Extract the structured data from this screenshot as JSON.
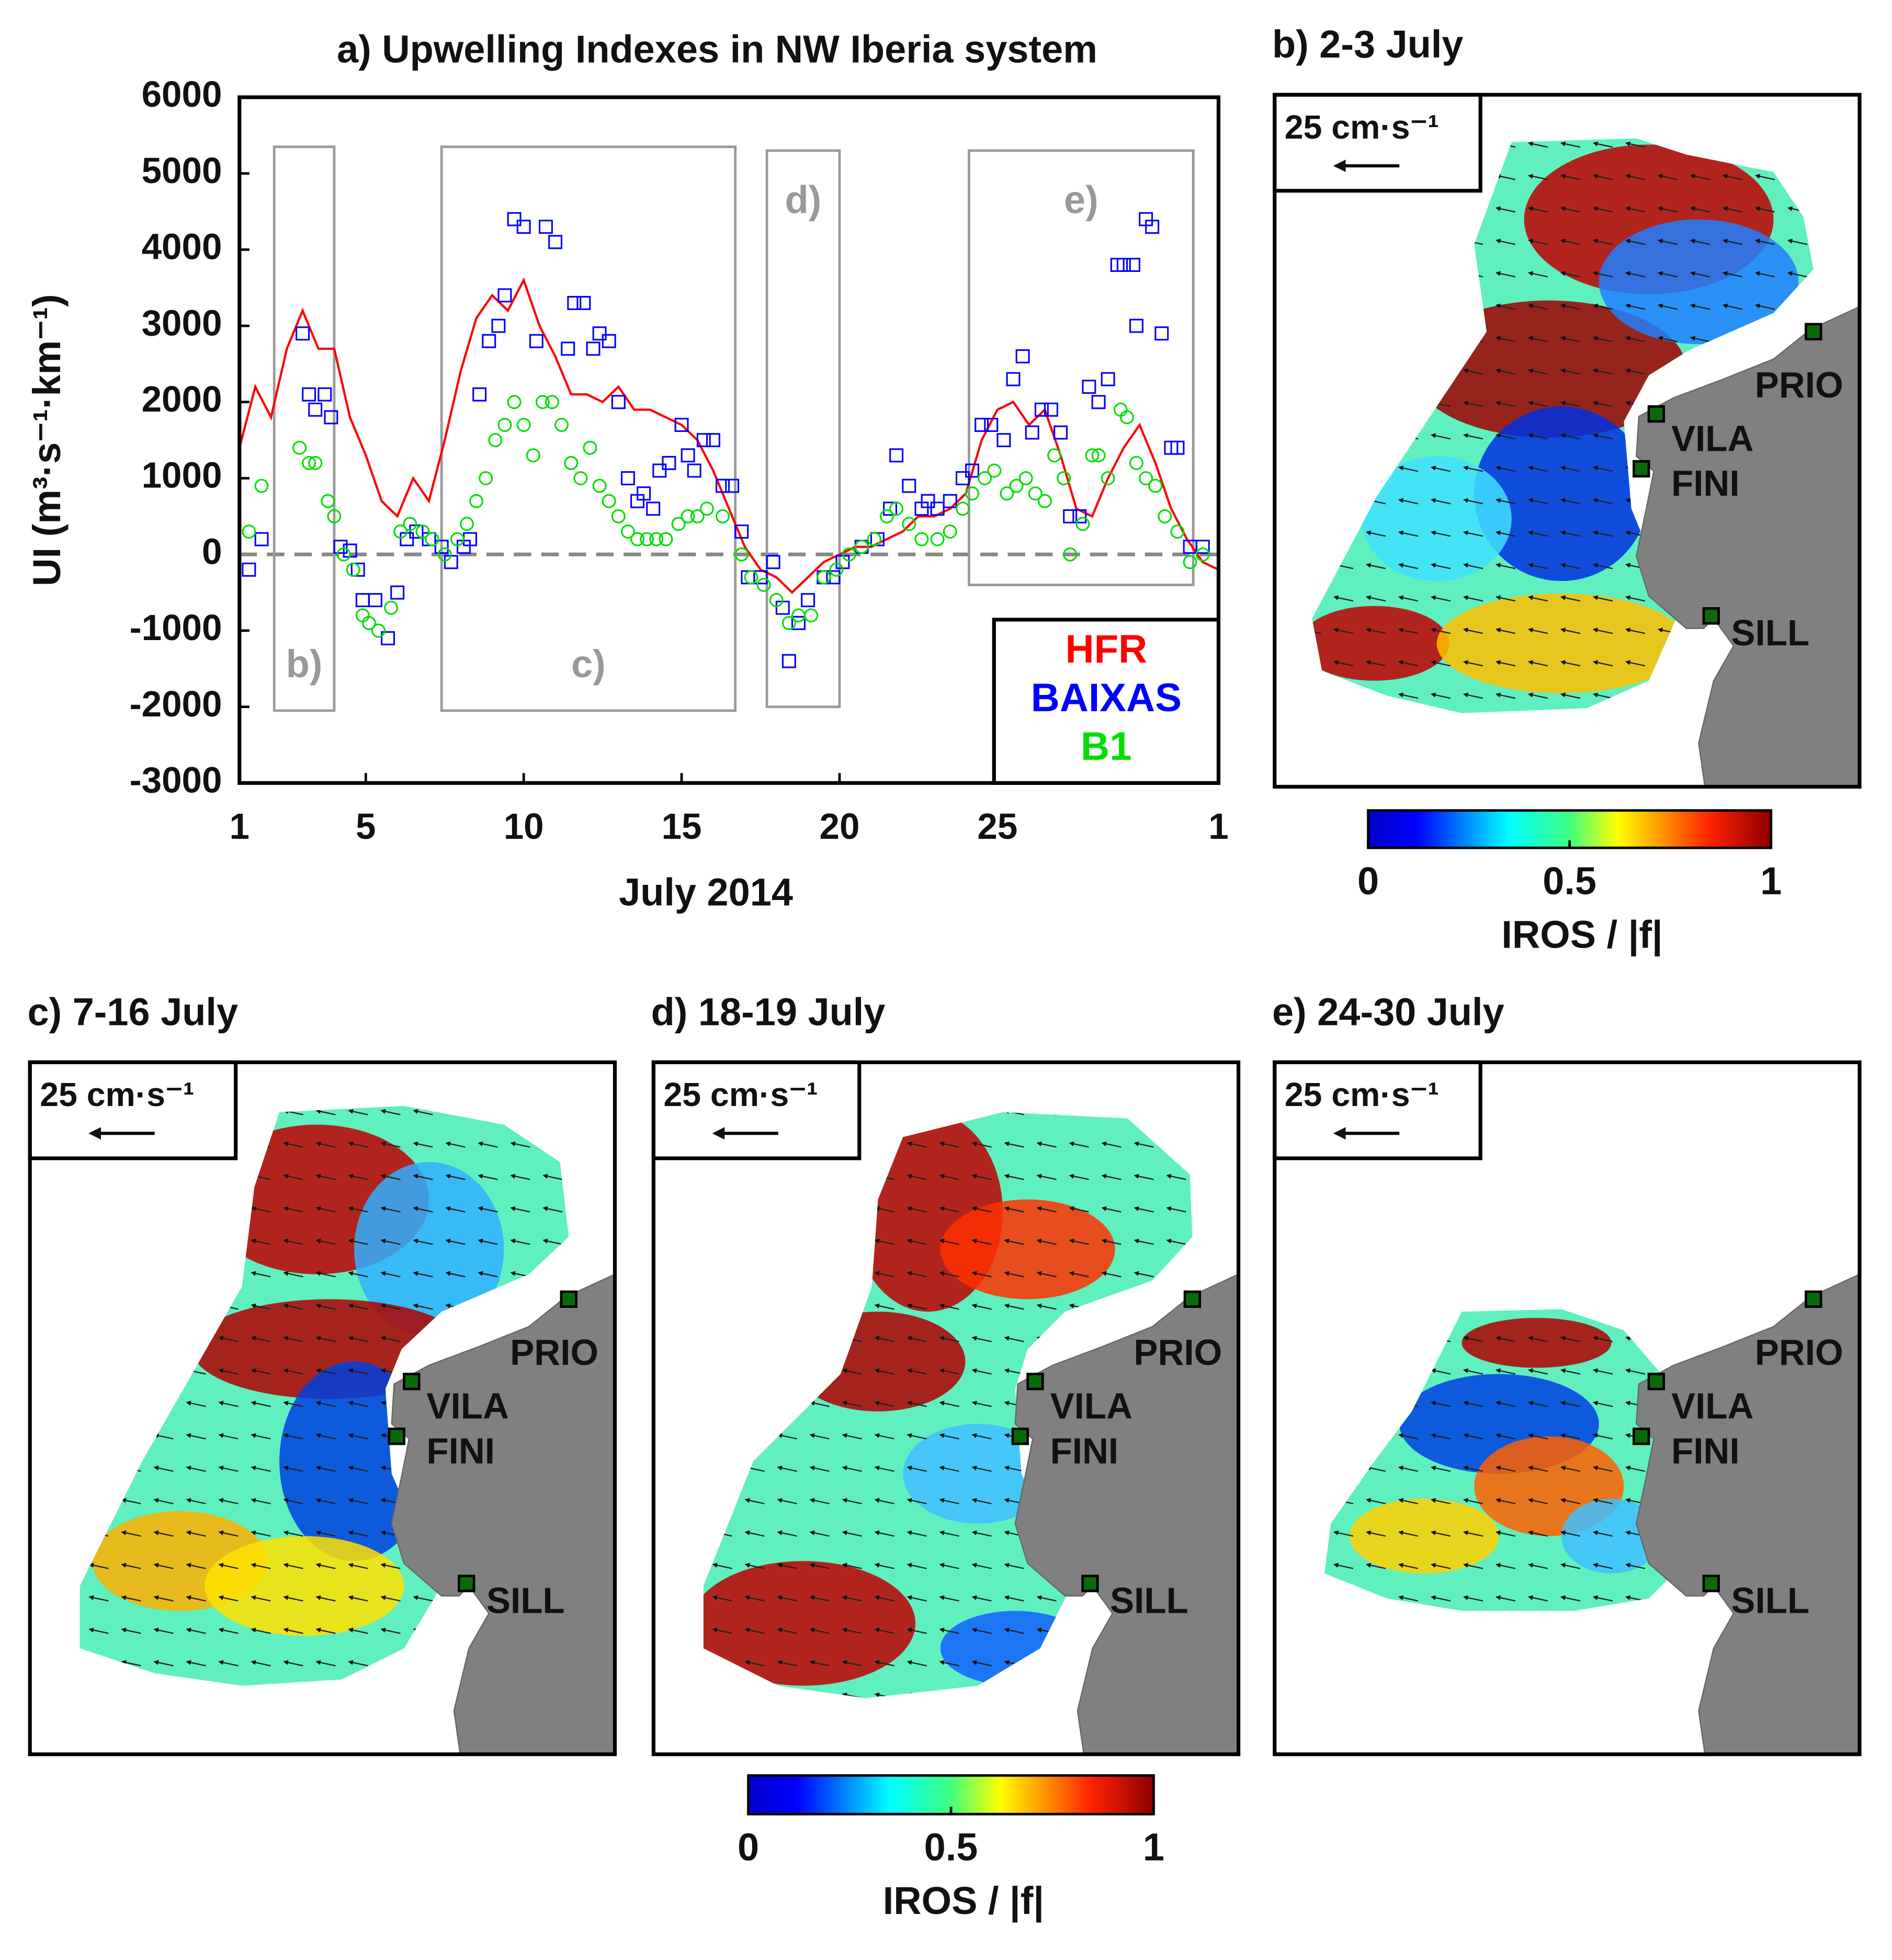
{
  "chart_data": {
    "type": "line",
    "title": "a) Upwelling Indexes in NW Iberia system",
    "x_label": "July 2014",
    "y_label": "UI (m³·s⁻¹·km⁻¹)",
    "xlim": [
      1,
      32
    ],
    "xticks": [
      1,
      5,
      10,
      15,
      20,
      25,
      {
        "value": 32,
        "label": "1"
      }
    ],
    "ylim": [
      -3000,
      6000
    ],
    "yticks": [
      -3000,
      -2000,
      -1000,
      0,
      1000,
      2000,
      3000,
      4000,
      5000,
      6000
    ],
    "reference_line": 0,
    "legend": "lower right",
    "series": [
      {
        "name": "HFR",
        "color": "#ff0000",
        "marker": "line",
        "x": [
          1,
          1.5,
          2,
          2.5,
          3,
          3.5,
          4,
          4.5,
          5,
          5.5,
          6,
          6.5,
          7,
          7.5,
          8,
          8.5,
          9,
          9.5,
          10,
          10.5,
          11,
          11.5,
          12,
          12.5,
          13,
          13.5,
          14,
          14.5,
          15,
          15.5,
          16,
          16.5,
          17,
          17.5,
          18,
          18.5,
          19,
          19.5,
          20,
          20.5,
          21,
          21.5,
          22,
          22.5,
          23,
          23.5,
          24,
          24.5,
          25,
          25.5,
          26,
          26.5,
          27,
          27.5,
          28,
          28.5,
          29,
          29.5,
          30,
          30.5,
          31,
          31.5,
          32
        ],
        "values": [
          1400,
          2200,
          1800,
          2700,
          3200,
          2700,
          2700,
          1800,
          1300,
          700,
          500,
          1000,
          700,
          1500,
          2400,
          3100,
          3400,
          3200,
          3600,
          3000,
          2600,
          2100,
          2100,
          2000,
          2200,
          1900,
          1900,
          1800,
          1700,
          1500,
          1100,
          600,
          100,
          -200,
          -300,
          -500,
          -300,
          -100,
          0,
          100,
          100,
          200,
          300,
          500,
          500,
          600,
          800,
          1500,
          1900,
          2000,
          1700,
          1900,
          1300,
          600,
          500,
          1000,
          1400,
          1700,
          1200,
          600,
          200,
          -100,
          -200
        ]
      },
      {
        "name": "BAIXAS",
        "color": "#0000ff",
        "marker": "square",
        "x": [
          1.3,
          1.7,
          3.0,
          3.2,
          3.4,
          3.7,
          3.9,
          4.2,
          4.5,
          4.75,
          4.9,
          5.3,
          5.7,
          6.0,
          6.3,
          6.6,
          7.0,
          7.4,
          7.7,
          8.1,
          8.3,
          8.6,
          8.9,
          9.2,
          9.4,
          9.7,
          10.0,
          10.4,
          10.7,
          11.0,
          11.4,
          11.6,
          11.9,
          12.2,
          12.4,
          12.7,
          13.0,
          13.3,
          13.6,
          13.8,
          14.1,
          14.3,
          14.6,
          15.0,
          15.2,
          15.4,
          15.7,
          16.0,
          16.3,
          16.6,
          16.9,
          17.1,
          17.5,
          17.9,
          18.2,
          18.4,
          18.7,
          19.0,
          19.5,
          19.8,
          20.1,
          20.7,
          21.2,
          21.6,
          21.8,
          22.2,
          22.6,
          22.8,
          23.1,
          23.5,
          23.9,
          24.2,
          24.5,
          24.8,
          25.2,
          25.5,
          25.8,
          26.1,
          26.4,
          26.7,
          27.0,
          27.3,
          27.6,
          27.9,
          28.2,
          28.5,
          28.8,
          29.0,
          29.3,
          29.4,
          29.7,
          29.9,
          30.2,
          30.5,
          30.7,
          31.1,
          31.5
        ],
        "values": [
          -200,
          200,
          2900,
          2100,
          1900,
          2100,
          1800,
          100,
          50,
          -200,
          -600,
          -600,
          -1100,
          -500,
          200,
          300,
          200,
          100,
          -100,
          100,
          200,
          2100,
          2800,
          3000,
          3400,
          4400,
          4300,
          2800,
          4300,
          4100,
          2700,
          3300,
          3300,
          2700,
          2900,
          2800,
          2000,
          1000,
          700,
          800,
          600,
          1100,
          1200,
          1700,
          1300,
          1100,
          1500,
          1500,
          900,
          900,
          300,
          -300,
          -300,
          -100,
          -700,
          -1400,
          -900,
          -600,
          -300,
          -300,
          -100,
          100,
          200,
          600,
          1300,
          900,
          600,
          700,
          600,
          700,
          1000,
          1100,
          1700,
          1700,
          1500,
          2300,
          2600,
          1600,
          1900,
          1900,
          1600,
          500,
          500,
          2200,
          2000,
          2300,
          3800,
          3800,
          3800,
          3000,
          4400,
          4300,
          2900,
          1400,
          1400,
          100,
          100
        ]
      },
      {
        "name": "B1",
        "color": "#00dd00",
        "marker": "circle",
        "x": [
          1.3,
          1.7,
          2.9,
          3.2,
          3.4,
          3.8,
          4.0,
          4.3,
          4.6,
          4.9,
          5.1,
          5.4,
          5.8,
          6.1,
          6.4,
          6.8,
          7.1,
          7.5,
          7.9,
          8.2,
          8.5,
          8.8,
          9.1,
          9.4,
          9.7,
          10.0,
          10.3,
          10.6,
          10.9,
          11.2,
          11.5,
          11.8,
          12.1,
          12.4,
          12.7,
          13.0,
          13.3,
          13.6,
          13.9,
          14.2,
          14.5,
          14.9,
          15.2,
          15.5,
          15.8,
          16.3,
          16.9,
          17.2,
          17.6,
          18.0,
          18.4,
          18.7,
          19.1,
          19.5,
          19.9,
          20.3,
          20.7,
          21.1,
          21.5,
          21.8,
          22.2,
          22.6,
          23.1,
          23.5,
          23.9,
          24.2,
          24.6,
          24.9,
          25.3,
          25.6,
          25.9,
          26.2,
          26.5,
          26.8,
          27.1,
          27.3,
          27.7,
          28.0,
          28.2,
          28.5,
          28.9,
          29.1,
          29.4,
          29.7,
          30.0,
          30.3,
          30.7,
          31.1,
          31.5
        ],
        "values": [
          300,
          900,
          1400,
          1200,
          1200,
          700,
          500,
          0,
          -200,
          -800,
          -900,
          -1000,
          -700,
          300,
          400,
          300,
          200,
          0,
          200,
          400,
          700,
          1000,
          1500,
          1700,
          2000,
          1700,
          1300,
          2000,
          2000,
          1700,
          1200,
          1000,
          1400,
          900,
          700,
          500,
          300,
          200,
          200,
          200,
          200,
          400,
          500,
          500,
          600,
          500,
          0,
          -300,
          -400,
          -600,
          -900,
          -800,
          -800,
          -300,
          -200,
          0,
          100,
          200,
          500,
          600,
          400,
          200,
          200,
          300,
          600,
          800,
          1000,
          1100,
          800,
          900,
          1000,
          800,
          700,
          1300,
          1000,
          0,
          400,
          1300,
          1300,
          1000,
          1900,
          1800,
          1200,
          1000,
          900,
          500,
          300,
          -100,
          0
        ]
      }
    ],
    "regions": [
      {
        "label": "b)",
        "x": [
          2.1,
          4.0
        ],
        "y": [
          -2050,
          5350
        ]
      },
      {
        "label": "c)",
        "x": [
          7.4,
          16.7
        ],
        "y": [
          -2050,
          5350
        ]
      },
      {
        "label": "d)",
        "x": [
          17.7,
          20.0
        ],
        "y": [
          -2000,
          5300
        ]
      },
      {
        "label": "e)",
        "x": [
          24.1,
          31.2
        ],
        "y": [
          -400,
          5300
        ]
      }
    ]
  },
  "maps": [
    {
      "title": "b) 2-3 July",
      "scale_label": "25 cm·s⁻¹",
      "sites": [
        "PRIO",
        "VILA",
        "FINI",
        "SILL"
      ]
    },
    {
      "title": "c) 7-16 July",
      "scale_label": "25 cm·s⁻¹",
      "sites": [
        "PRIO",
        "VILA",
        "FINI",
        "SILL"
      ]
    },
    {
      "title": "d) 18-19 July",
      "scale_label": "25 cm·s⁻¹",
      "sites": [
        "PRIO",
        "VILA",
        "FINI",
        "SILL"
      ]
    },
    {
      "title": "e) 24-30 July",
      "scale_label": "25 cm·s⁻¹",
      "sites": [
        "PRIO",
        "VILA",
        "FINI",
        "SILL"
      ]
    }
  ],
  "colorbars": [
    {
      "clim": [
        0,
        1
      ],
      "ticks": [
        0,
        0.5,
        1
      ],
      "label": "IROS / |f|"
    },
    {
      "clim": [
        0,
        1
      ],
      "ticks": [
        0,
        0.5,
        1
      ],
      "label": "IROS / |f|"
    }
  ]
}
